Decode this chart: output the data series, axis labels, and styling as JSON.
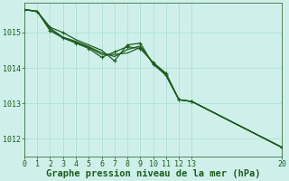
{
  "background_color": "#cff0ea",
  "line_color": "#1e5c1e",
  "grid_color": "#a8ddd5",
  "title": "Graphe pression niveau de la mer (hPa)",
  "xlim": [
    0,
    20
  ],
  "ylim": [
    1011.5,
    1015.85
  ],
  "yticks": [
    1012,
    1013,
    1014,
    1015
  ],
  "xticks": [
    0,
    1,
    2,
    3,
    4,
    5,
    6,
    7,
    8,
    9,
    10,
    11,
    12,
    13,
    20
  ],
  "series": [
    {
      "x": [
        0,
        1,
        2,
        3,
        4,
        5,
        6,
        7,
        8,
        9,
        10,
        11,
        12,
        13,
        20
      ],
      "y": [
        1015.65,
        1015.6,
        1015.05,
        1014.85,
        1014.7,
        1014.55,
        1014.3,
        1014.45,
        1014.6,
        1014.55,
        1014.15,
        1013.85,
        1013.1,
        1013.05,
        1011.75
      ],
      "has_marker": [
        true,
        true,
        true,
        true,
        true,
        true,
        true,
        true,
        true,
        true,
        true,
        true,
        true,
        true,
        true
      ]
    },
    {
      "x": [
        0,
        1,
        2,
        3,
        4,
        5,
        6,
        7,
        8,
        9,
        10,
        11,
        12,
        13,
        20
      ],
      "y": [
        1015.65,
        1015.6,
        1015.15,
        1015.0,
        1014.8,
        1014.65,
        1014.5,
        1014.2,
        1014.65,
        1014.7,
        1014.1,
        1013.8,
        1013.1,
        1013.05,
        1011.75
      ],
      "has_marker": [
        false,
        false,
        true,
        true,
        false,
        false,
        false,
        true,
        true,
        true,
        true,
        true,
        true,
        true,
        false
      ]
    },
    {
      "x": [
        0,
        1,
        2,
        3,
        4,
        5,
        6,
        7,
        8,
        9,
        10,
        11,
        12,
        13,
        20
      ],
      "y": [
        1015.65,
        1015.6,
        1015.1,
        1014.85,
        1014.72,
        1014.58,
        1014.38,
        1014.38,
        1014.42,
        1014.58,
        1014.15,
        1013.78,
        1013.1,
        1013.05,
        1011.75
      ],
      "has_marker": [
        false,
        false,
        false,
        false,
        false,
        false,
        false,
        false,
        false,
        false,
        false,
        false,
        false,
        false,
        false
      ]
    },
    {
      "x": [
        0,
        1,
        2,
        3,
        4,
        5,
        6,
        7,
        8,
        9,
        10,
        11,
        12,
        13,
        20
      ],
      "y": [
        1015.65,
        1015.6,
        1015.12,
        1014.87,
        1014.75,
        1014.6,
        1014.43,
        1014.32,
        1014.52,
        1014.62,
        1014.12,
        1013.82,
        1013.1,
        1013.05,
        1011.75
      ],
      "has_marker": [
        false,
        false,
        false,
        false,
        false,
        false,
        false,
        false,
        false,
        false,
        false,
        false,
        false,
        false,
        false
      ]
    }
  ],
  "markersize": 3,
  "linewidth": 0.9,
  "title_fontsize": 7.5,
  "tick_fontsize": 6
}
